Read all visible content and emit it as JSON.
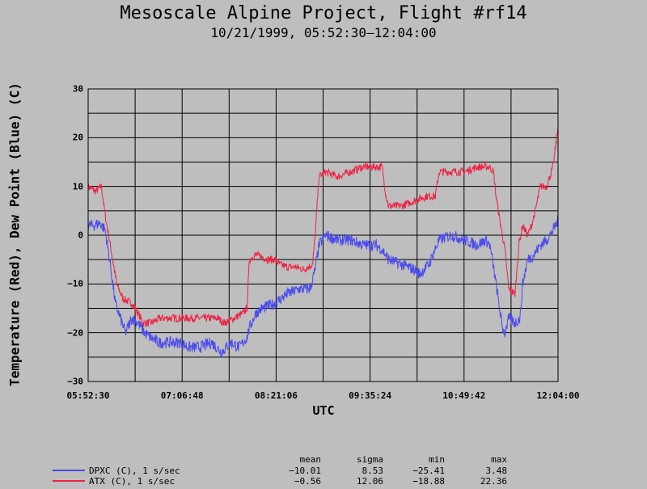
{
  "colors": {
    "background": "#bebebe",
    "dewpoint": "#4a4aee",
    "temperature": "#ee2244",
    "grid": "#000000"
  },
  "header": {
    "title": "Mesoscale Alpine Project, Flight #rf14",
    "subtitle": "10/21/1999, 05:52:30–12:04:00"
  },
  "stats": {
    "columns": [
      "mean",
      "sigma",
      "min",
      "max"
    ],
    "rows": [
      {
        "label": "DPXC (C), 1 s/sec",
        "color": "#4a4aee",
        "values": [
          "−10.01",
          "8.53",
          "−25.41",
          "3.48"
        ]
      },
      {
        "label": "ATX (C), 1 s/sec",
        "color": "#ee2244",
        "values": [
          "−0.56",
          "12.06",
          "−18.88",
          "22.36"
        ]
      }
    ]
  },
  "chart_data": {
    "type": "line",
    "title": "Mesoscale Alpine Project, Flight #rf14",
    "subtitle": "10/21/1999, 05:52:30–12:04:00",
    "xlabel": "UTC",
    "ylabel": "Temperature (Red), Dew Point (Blue) (C)",
    "xlim": [
      "05:52:30",
      "12:04:00"
    ],
    "ylim": [
      -30,
      30
    ],
    "x_ticks": [
      "05:52:30",
      "07:06:48",
      "08:21:06",
      "09:35:24",
      "10:49:42",
      "12:04:00"
    ],
    "y_ticks": [
      "30",
      "20",
      "10",
      "0",
      "−10",
      "−20",
      "−30"
    ],
    "y_tick_values": [
      30,
      20,
      10,
      0,
      -10,
      -20,
      -30
    ],
    "grid": true,
    "series": [
      {
        "name": "ATX (C), 1 s/sec",
        "color": "#ee2244",
        "noise": 0.8,
        "points": [
          [
            "05:52:30",
            10
          ],
          [
            "05:58:30",
            9
          ],
          [
            "06:03:00",
            10
          ],
          [
            "06:06:00",
            4
          ],
          [
            "06:10:00",
            -2
          ],
          [
            "06:15:00",
            -10
          ],
          [
            "06:20:00",
            -13
          ],
          [
            "06:27:00",
            -14
          ],
          [
            "06:32:00",
            -16
          ],
          [
            "06:36:00",
            -18
          ],
          [
            "06:42:00",
            -18
          ],
          [
            "06:50:00",
            -17
          ],
          [
            "07:00:00",
            -17
          ],
          [
            "07:10:00",
            -17
          ],
          [
            "07:25:00",
            -17
          ],
          [
            "07:35:00",
            -17
          ],
          [
            "07:40:00",
            -18
          ],
          [
            "07:48:00",
            -17
          ],
          [
            "07:55:00",
            -16
          ],
          [
            "07:58:00",
            -15
          ],
          [
            "08:00:00",
            -5
          ],
          [
            "08:05:00",
            -4
          ],
          [
            "08:10:00",
            -4.5
          ],
          [
            "08:15:00",
            -5
          ],
          [
            "08:20:00",
            -5
          ],
          [
            "08:24:00",
            -6
          ],
          [
            "08:30:00",
            -6.5
          ],
          [
            "08:36:00",
            -6.5
          ],
          [
            "08:43:00",
            -7
          ],
          [
            "08:50:00",
            -6
          ],
          [
            "08:52:00",
            0
          ],
          [
            "08:55:00",
            12
          ],
          [
            "09:00:00",
            13
          ],
          [
            "09:10:00",
            12
          ],
          [
            "09:20:00",
            13
          ],
          [
            "09:30:00",
            14
          ],
          [
            "09:38:00",
            14
          ],
          [
            "09:45:00",
            14
          ],
          [
            "09:48:00",
            8
          ],
          [
            "09:50:00",
            6
          ],
          [
            "10:00:00",
            6
          ],
          [
            "10:10:00",
            7
          ],
          [
            "10:20:00",
            8
          ],
          [
            "10:27:00",
            8
          ],
          [
            "10:30:00",
            13
          ],
          [
            "10:40:00",
            13
          ],
          [
            "10:50:00",
            13
          ],
          [
            "11:00:00",
            14
          ],
          [
            "11:10:00",
            14
          ],
          [
            "11:13:00",
            13
          ],
          [
            "11:15:00",
            8
          ],
          [
            "11:18:00",
            3
          ],
          [
            "11:22:00",
            -3
          ],
          [
            "11:25:00",
            -11
          ],
          [
            "11:30:00",
            -12
          ],
          [
            "11:33:00",
            -2
          ],
          [
            "11:36:00",
            2
          ],
          [
            "11:40:00",
            0
          ],
          [
            "11:43:00",
            2
          ],
          [
            "11:46:00",
            5
          ],
          [
            "11:50:00",
            10
          ],
          [
            "11:55:00",
            10
          ],
          [
            "12:00:00",
            14
          ],
          [
            "12:02:00",
            18
          ],
          [
            "12:04:00",
            22
          ]
        ]
      },
      {
        "name": "DPXC (C), 1 s/sec",
        "color": "#4a4aee",
        "noise": 1.2,
        "points": [
          [
            "05:52:30",
            2
          ],
          [
            "05:57:00",
            2
          ],
          [
            "06:02:00",
            2.5
          ],
          [
            "06:06:00",
            1
          ],
          [
            "06:10:00",
            -6
          ],
          [
            "06:14:00",
            -14
          ],
          [
            "06:18:00",
            -17
          ],
          [
            "06:22:00",
            -20
          ],
          [
            "06:27:00",
            -17
          ],
          [
            "06:32:00",
            -18
          ],
          [
            "06:37:00",
            -20
          ],
          [
            "06:42:00",
            -21
          ],
          [
            "06:48:00",
            -22
          ],
          [
            "06:55:00",
            -22
          ],
          [
            "07:05:00",
            -22
          ],
          [
            "07:12:00",
            -23
          ],
          [
            "07:20:00",
            -23
          ],
          [
            "07:30:00",
            -22
          ],
          [
            "07:38:00",
            -24
          ],
          [
            "07:45:00",
            -22
          ],
          [
            "07:52:00",
            -23
          ],
          [
            "07:58:00",
            -21
          ],
          [
            "08:00:00",
            -19
          ],
          [
            "08:05:00",
            -16
          ],
          [
            "08:10:00",
            -15
          ],
          [
            "08:20:00",
            -14
          ],
          [
            "08:30:00",
            -12
          ],
          [
            "08:40:00",
            -11
          ],
          [
            "08:48:00",
            -11
          ],
          [
            "08:52:00",
            -7
          ],
          [
            "08:55:00",
            -2
          ],
          [
            "09:00:00",
            0
          ],
          [
            "09:10:00",
            -1
          ],
          [
            "09:20:00",
            -1
          ],
          [
            "09:30:00",
            -2
          ],
          [
            "09:40:00",
            -2
          ],
          [
            "09:45:00",
            -3
          ],
          [
            "09:50:00",
            -5
          ],
          [
            "10:00:00",
            -6
          ],
          [
            "10:10:00",
            -7
          ],
          [
            "10:15:00",
            -8
          ],
          [
            "10:18:00",
            -7
          ],
          [
            "10:22:00",
            -6
          ],
          [
            "10:25:00",
            -4
          ],
          [
            "10:30:00",
            -1
          ],
          [
            "10:40:00",
            0
          ],
          [
            "10:50:00",
            -1
          ],
          [
            "11:00:00",
            -2
          ],
          [
            "11:07:00",
            -1
          ],
          [
            "11:10:00",
            -2
          ],
          [
            "11:12:00",
            -5
          ],
          [
            "11:15:00",
            -10
          ],
          [
            "11:20:00",
            -19
          ],
          [
            "11:22:00",
            -20
          ],
          [
            "11:25:00",
            -17
          ],
          [
            "11:30:00",
            -18
          ],
          [
            "11:34:00",
            -17
          ],
          [
            "11:36:00",
            -10
          ],
          [
            "11:40:00",
            -5
          ],
          [
            "11:45:00",
            -4
          ],
          [
            "11:50:00",
            -2
          ],
          [
            "11:55:00",
            -1
          ],
          [
            "12:00:00",
            1
          ],
          [
            "12:04:00",
            3
          ]
        ]
      }
    ]
  }
}
